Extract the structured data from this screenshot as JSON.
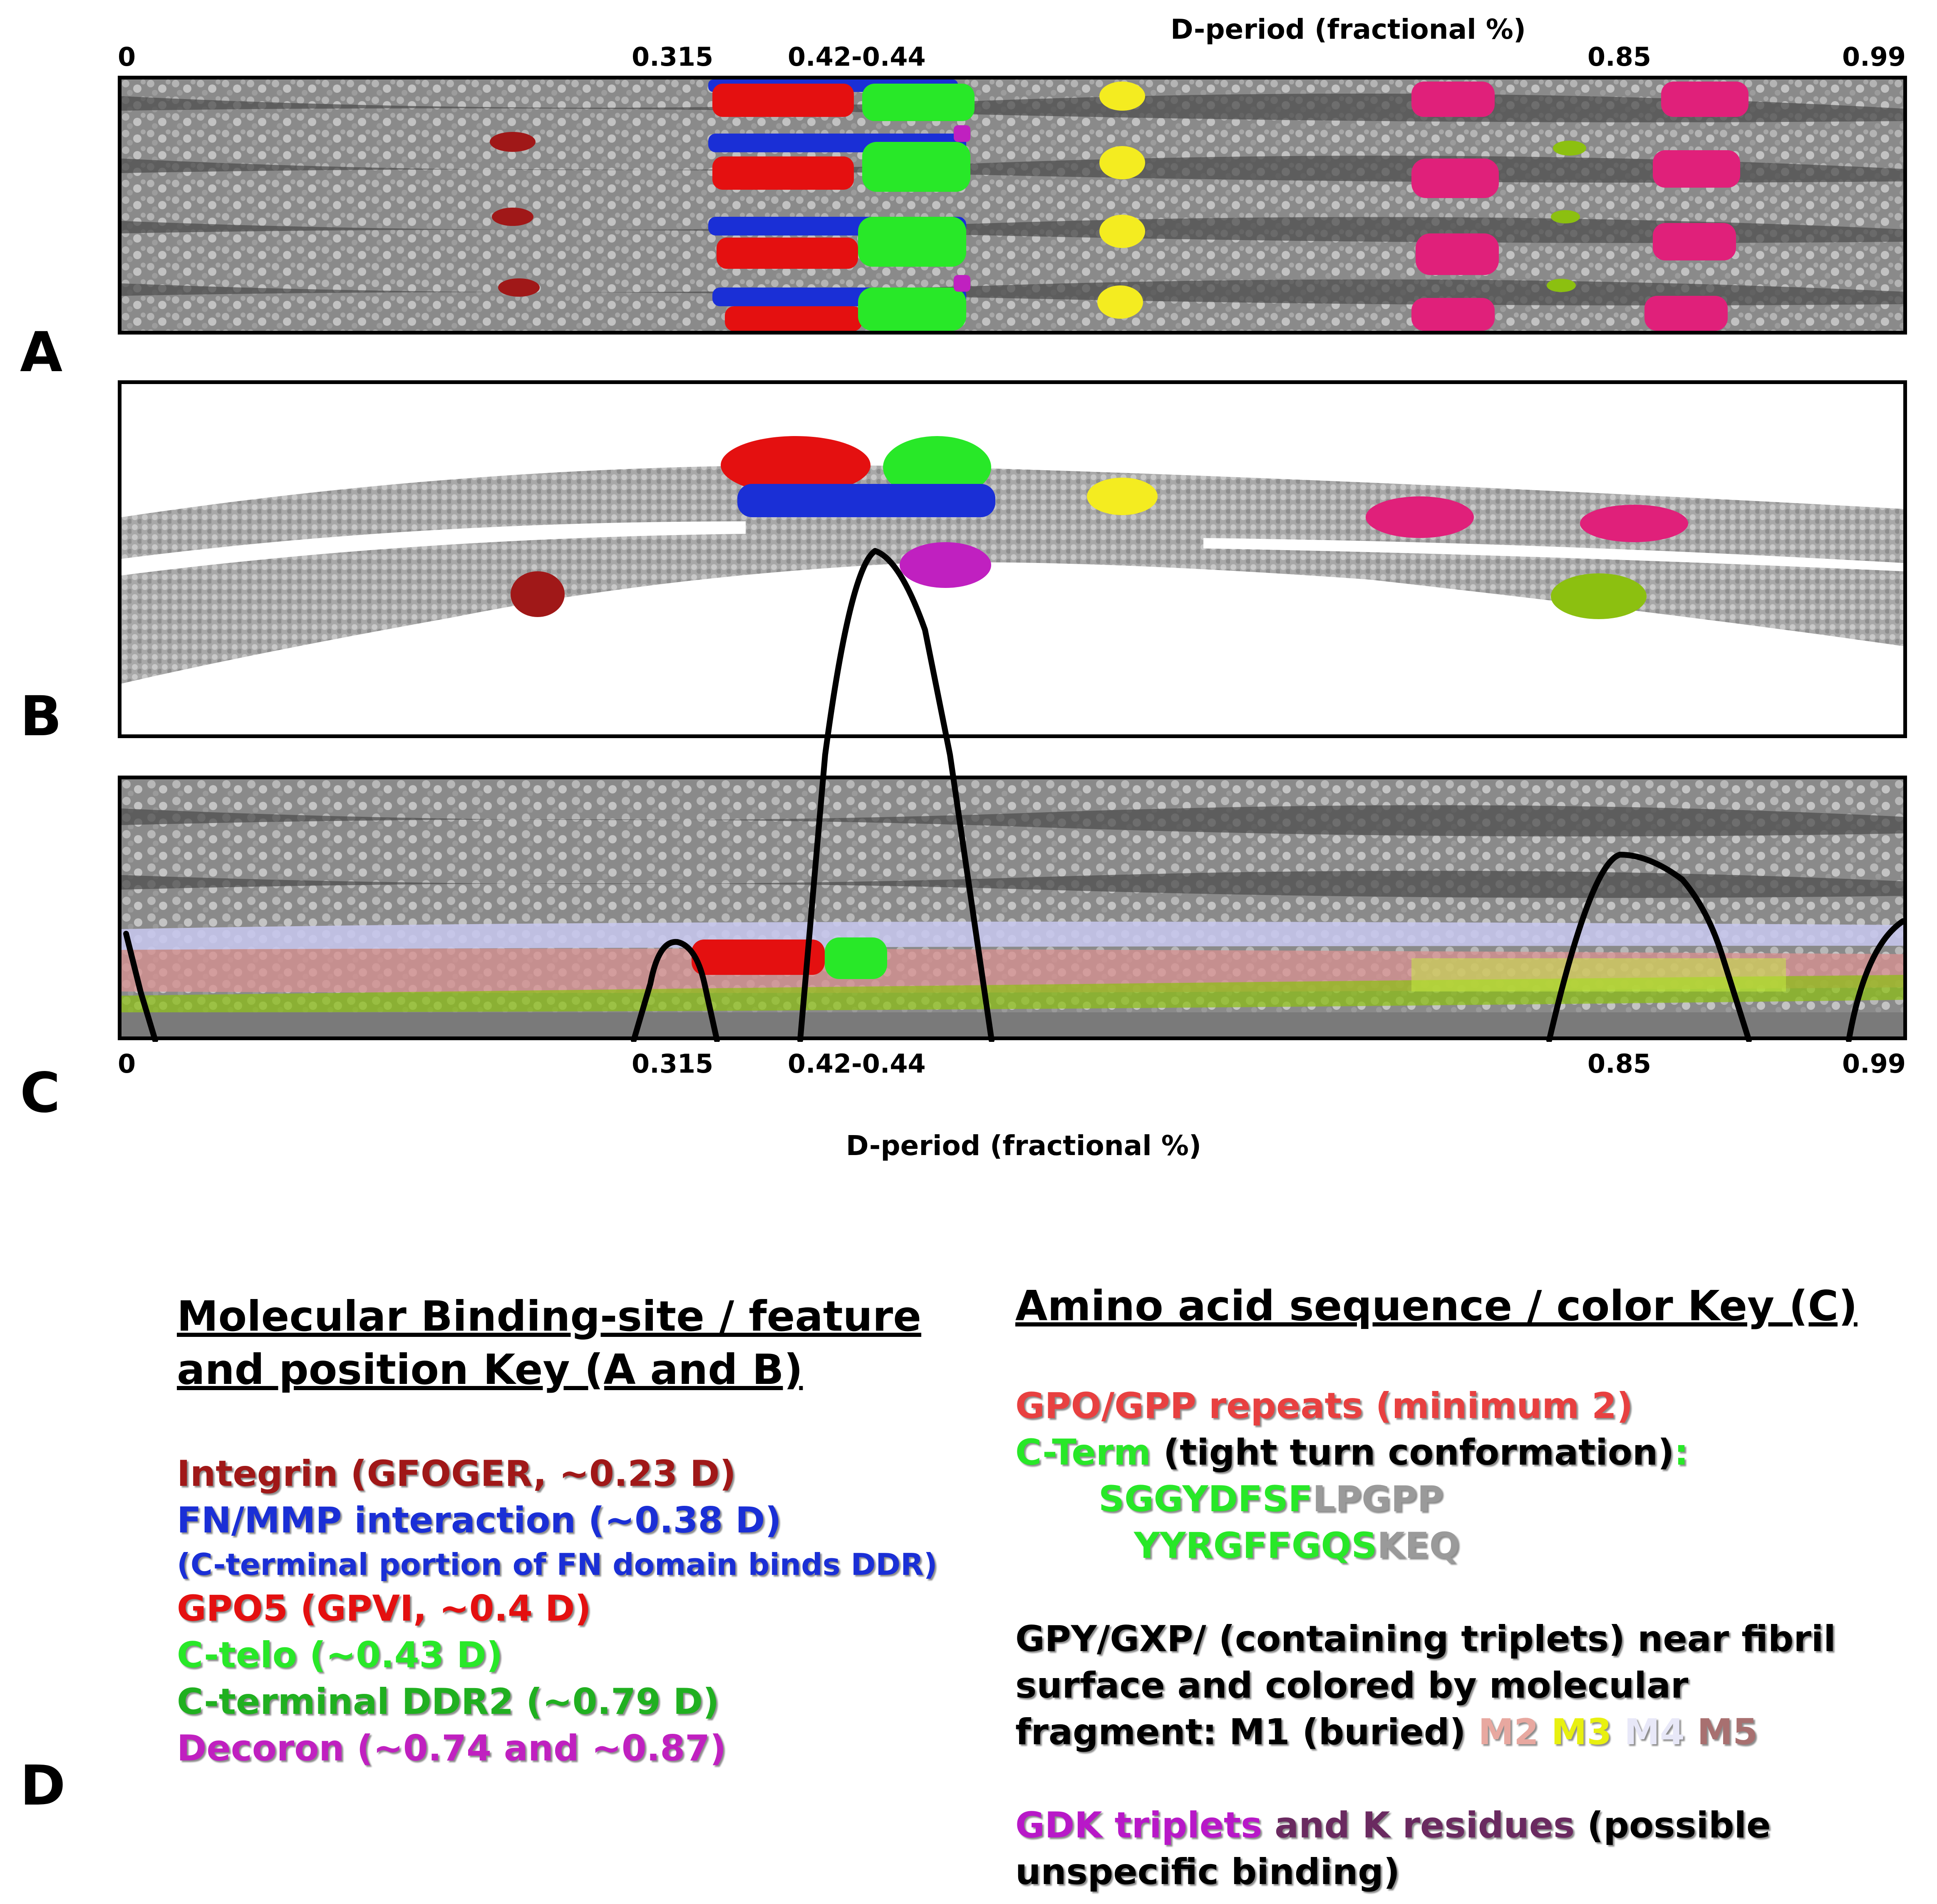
{
  "axis": {
    "title": "D-period (fractional %)",
    "ticks": [
      "0",
      "0.315",
      "0.42-0.44",
      "0.85",
      "0.99"
    ]
  },
  "panels": {
    "A": "A",
    "B": "B",
    "C": "C",
    "D": "D"
  },
  "colors": {
    "integrin": "#a01818",
    "fn_mmp": "#1a2fd6",
    "gpo5": "#e41010",
    "c_telo": "#28e828",
    "ddr2": "#20b020",
    "decoron": "#c020c0",
    "yellow_site": "#f4ec20",
    "magenta_site": "#e0207a",
    "olive_site": "#8cc010",
    "gdk": "#b818c8",
    "k_residues": "#6a2a60",
    "lpgpp": "#9a9a9a",
    "m2": "#e8a8a0",
    "m3": "#e8f010",
    "m4": "#e8e8f8",
    "m5": "#a87070"
  },
  "key_left": {
    "title": "Molecular Binding-site / feature\nand position Key (A and B)",
    "items": [
      {
        "text": "Integrin (GFOGER, ~0.23 D)",
        "color": "#a01818",
        "small": false
      },
      {
        "text": "FN/MMP interaction (~0.38 D)",
        "color": "#1a2fd6",
        "small": false
      },
      {
        "text": "(C-terminal portion of FN domain binds DDR)",
        "color": "#1a2fd6",
        "small": true
      },
      {
        "text": "GPO5 (GPVI, ~0.4 D)",
        "color": "#e41010",
        "small": false
      },
      {
        "text": "C-telo (~0.43 D)",
        "color": "#28e828",
        "small": false
      },
      {
        "text": "C-terminal DDR2 (~0.79 D)",
        "color": "#20b020",
        "small": false
      },
      {
        "text": "Decoron (~0.74 and ~0.87)",
        "color": "#c020c0",
        "small": false
      }
    ]
  },
  "key_right": {
    "title": "Amino acid sequence / color Key (C)",
    "line1": "GPO/GPP repeats (minimum 2)",
    "line2_green": "C-Term",
    "line2_black": " (tight turn conformation)",
    "line2_colon": ":",
    "seq1_green": "SGGYDFSF",
    "seq1_gray": "LPGPP",
    "seq2_green": "YYRGFFGQS",
    "seq2_gray": "KEQ",
    "gpy1": "GPY/GXP/ (containing triplets) near fibril",
    "gpy2": "surface and colored by molecular",
    "gpy3": "fragment: M1 (buried) ",
    "m2": "M2",
    "m3": "M3",
    "m4": "M4",
    "m5": "M5",
    "gdk": "GDK triplets",
    "and_k": " and K residues",
    "possible": " (possible",
    "unspecific": "unspecific binding)"
  }
}
